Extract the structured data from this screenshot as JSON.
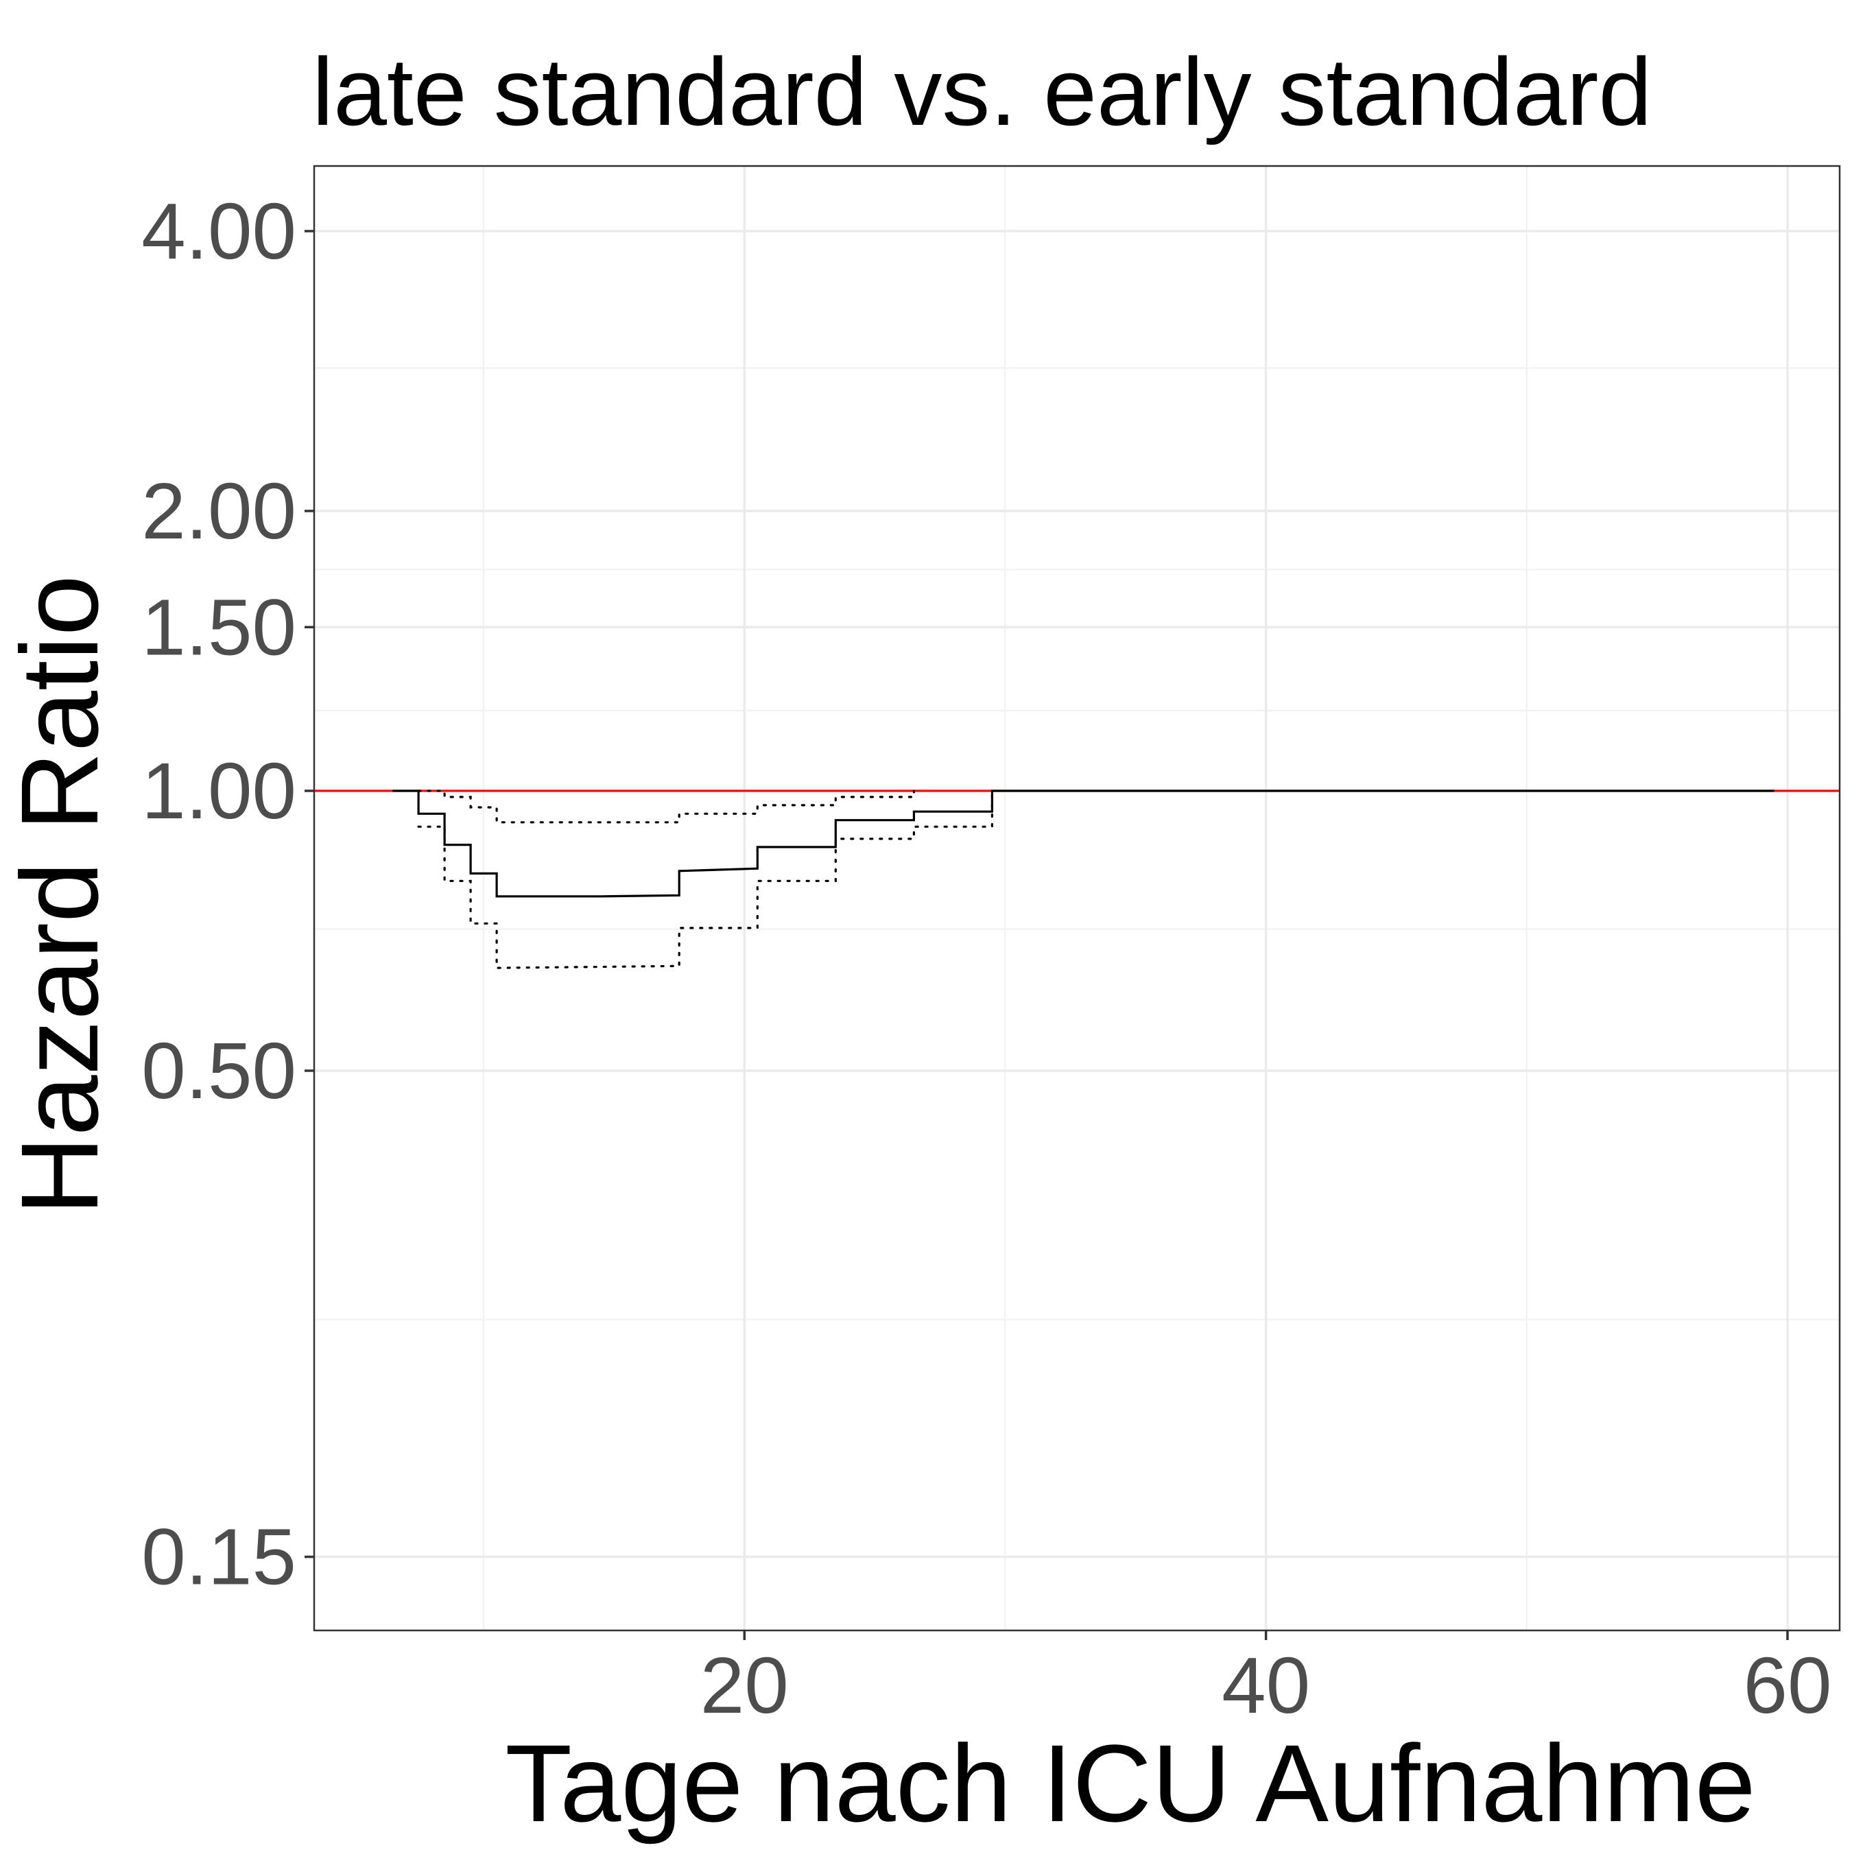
{
  "chart_data": {
    "type": "line",
    "title": "late standard vs. early standard",
    "xlabel": "Tage nach ICU Aufnahme",
    "ylabel": "Hazard Ratio",
    "x_scale": "linear",
    "y_scale": "log",
    "xlim": [
      3.5,
      62
    ],
    "ylim": [
      0.125,
      4.7
    ],
    "x_ticks": [
      {
        "value": 20,
        "label": "20"
      },
      {
        "value": 40,
        "label": "40"
      },
      {
        "value": 60,
        "label": "60"
      }
    ],
    "x_minor_ticks": [
      10,
      30,
      50
    ],
    "y_ticks": [
      {
        "value": 0.15,
        "label": "0.15"
      },
      {
        "value": 0.5,
        "label": "0.50"
      },
      {
        "value": 1.0,
        "label": "1.00"
      },
      {
        "value": 1.5,
        "label": "1.50"
      },
      {
        "value": 2.0,
        "label": "2.00"
      },
      {
        "value": 4.0,
        "label": "4.00"
      }
    ],
    "y_minor_ticks": [
      0.27,
      0.71,
      1.22,
      1.73,
      2.85
    ],
    "grid": true,
    "legend": "none",
    "reference_line": {
      "y": 1.0,
      "x_from": 3.5,
      "x_to": 62,
      "color": "#ff0000"
    },
    "series": [
      {
        "role": "estimate",
        "color": "#000000",
        "dash": "solid",
        "points": [
          [
            6.5,
            1.0
          ],
          [
            7.5,
            1.0
          ],
          [
            7.5,
            0.945
          ],
          [
            8.5,
            0.945
          ],
          [
            8.5,
            0.875
          ],
          [
            9.5,
            0.875
          ],
          [
            9.5,
            0.815
          ],
          [
            10.5,
            0.815
          ],
          [
            10.5,
            0.77
          ],
          [
            14.5,
            0.77
          ],
          [
            17.5,
            0.772
          ],
          [
            17.5,
            0.82
          ],
          [
            20.5,
            0.825
          ],
          [
            20.5,
            0.87
          ],
          [
            23.5,
            0.87
          ],
          [
            23.5,
            0.93
          ],
          [
            26.5,
            0.93
          ],
          [
            26.5,
            0.95
          ],
          [
            29.5,
            0.95
          ],
          [
            29.5,
            1.0
          ],
          [
            59.5,
            1.0
          ]
        ]
      },
      {
        "role": "upper-ci",
        "color": "#000000",
        "dash": "dotted",
        "points": [
          [
            7.5,
            1.0
          ],
          [
            8.5,
            1.0
          ],
          [
            8.5,
            0.985
          ],
          [
            9.5,
            0.985
          ],
          [
            9.5,
            0.96
          ],
          [
            10.5,
            0.96
          ],
          [
            10.5,
            0.925
          ],
          [
            17.5,
            0.925
          ],
          [
            17.5,
            0.945
          ],
          [
            20.5,
            0.945
          ],
          [
            20.5,
            0.965
          ],
          [
            23.5,
            0.965
          ],
          [
            23.5,
            0.985
          ],
          [
            26.5,
            0.985
          ],
          [
            26.5,
            1.0
          ]
        ]
      },
      {
        "role": "lower-ci",
        "color": "#000000",
        "dash": "dotted",
        "points": [
          [
            7.5,
            0.915
          ],
          [
            8.5,
            0.915
          ],
          [
            8.5,
            0.8
          ],
          [
            9.5,
            0.8
          ],
          [
            9.5,
            0.72
          ],
          [
            10.5,
            0.72
          ],
          [
            10.5,
            0.645
          ],
          [
            17.5,
            0.648
          ],
          [
            17.5,
            0.712
          ],
          [
            20.5,
            0.712
          ],
          [
            20.5,
            0.8
          ],
          [
            23.5,
            0.8
          ],
          [
            23.5,
            0.888
          ],
          [
            26.5,
            0.888
          ],
          [
            26.5,
            0.915
          ],
          [
            29.5,
            0.915
          ],
          [
            29.5,
            1.0
          ]
        ]
      }
    ]
  }
}
